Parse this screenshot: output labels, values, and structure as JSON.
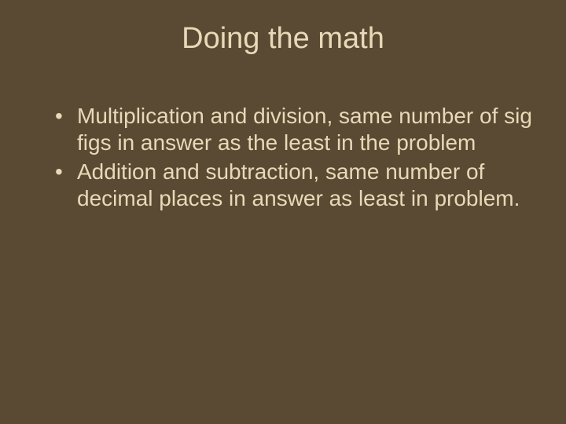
{
  "slide": {
    "title": "Doing the math",
    "bullets": [
      "Multiplication and division, same number of sig figs in answer as  the least in the problem",
      "Addition and subtraction, same number of decimal places in answer as least in problem."
    ],
    "background_color": "#5a4a33",
    "text_color": "#e8d9b8",
    "title_fontsize": 38,
    "body_fontsize": 28
  }
}
